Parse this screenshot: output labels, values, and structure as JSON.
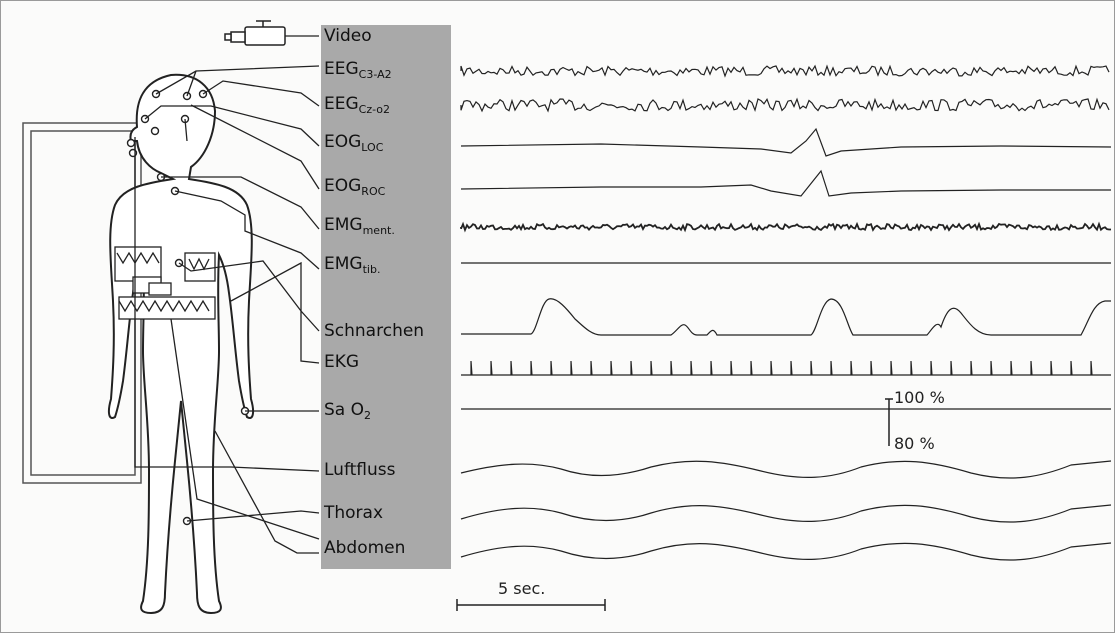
{
  "channels": [
    {
      "label": "Video"
    },
    {
      "label": "EEG",
      "sub": "C3-A2"
    },
    {
      "label": "EEG",
      "sub": "Cz-o2"
    },
    {
      "label": "EOG",
      "sub": "LOC"
    },
    {
      "label": "EOG",
      "sub": "ROC"
    },
    {
      "label": "EMG",
      "sub": "ment."
    },
    {
      "label": "EMG",
      "sub": "tib."
    },
    {
      "label": "Schnarchen"
    },
    {
      "label": "EKG"
    },
    {
      "label": "Sa O",
      "sub": "2"
    },
    {
      "label": "Luftfluss"
    },
    {
      "label": "Thorax"
    },
    {
      "label": "Abdomen"
    }
  ],
  "spo2_scale": {
    "top_label": "100 %",
    "bottom_label": "80 %"
  },
  "time_scale": {
    "label": "5 sec."
  },
  "colors": {
    "panel": "#a9a9a9",
    "ink": "#222222",
    "background": "#fbfbfa"
  },
  "icons": [
    "video-camera-icon",
    "human-body-outline",
    "electrode-dot"
  ]
}
